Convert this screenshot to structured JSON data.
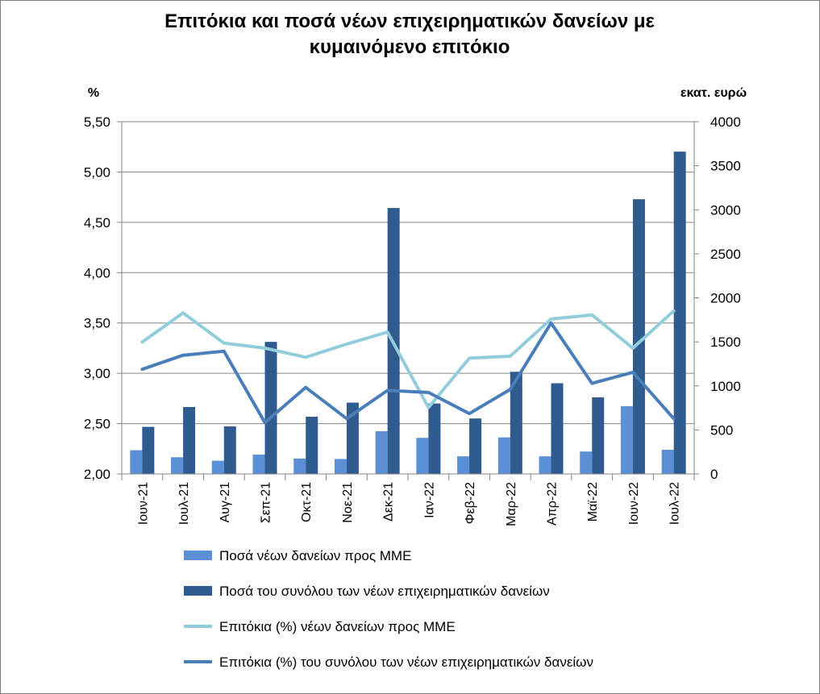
{
  "chart_data": {
    "type": "bar",
    "title": "Επιτόκια και ποσά νέων επιχειρηματικών δανείων με κυμαινόμενο επιτόκιο",
    "title_lines": [
      "Επιτόκια και ποσά νέων επιχειρηματικών  δανείων με",
      "κυμαινόμενο επιτόκιο"
    ],
    "ylabel_left": "%",
    "ylabel_right": "εκατ. ευρώ",
    "ylim_left": [
      2.0,
      5.5
    ],
    "ylim_right": [
      0,
      4000
    ],
    "yticks_left": [
      "2,00",
      "2,50",
      "3,00",
      "3,50",
      "4,00",
      "4,50",
      "5,00",
      "5,50"
    ],
    "yticks_right": [
      "0",
      "500",
      "1000",
      "1500",
      "2000",
      "2500",
      "3000",
      "3500",
      "4000"
    ],
    "grid": true,
    "legend_position": "bottom",
    "categories": [
      "Ιουν-21",
      "Ιουλ-21",
      "Αυγ-21",
      "Σεπ-21",
      "Οκτ-21",
      "Νοε-21",
      "Δεκ-21",
      "Ιαν-22",
      "Φεβ-22",
      "Μαρ-22",
      "Απρ-22",
      "Μαϊ-22",
      "Ιουν-22",
      "Ιουλ-22"
    ],
    "series": [
      {
        "name": "Ποσά νέων δανείων προς ΜΜΕ",
        "type": "bar",
        "axis": "right",
        "color": "#5b8fd6",
        "values": [
          270,
          190,
          150,
          220,
          175,
          170,
          485,
          410,
          200,
          415,
          200,
          255,
          770,
          275
        ]
      },
      {
        "name": "Ποσά του συνόλου των νέων επιχειρηματικών δανείων",
        "type": "bar",
        "axis": "right",
        "color": "#2f5b8f",
        "values": [
          535,
          760,
          540,
          1500,
          650,
          810,
          3020,
          800,
          630,
          1160,
          1030,
          870,
          3120,
          3660
        ]
      },
      {
        "name": "Επιτόκια (%) νέων δανείων προς ΜΜΕ",
        "type": "line",
        "axis": "left",
        "color": "#92cddc",
        "values": [
          3.31,
          3.6,
          3.3,
          3.25,
          3.16,
          3.29,
          3.41,
          2.66,
          3.15,
          3.17,
          3.54,
          3.58,
          3.25,
          3.62
        ]
      },
      {
        "name": "Επιτόκια (%) του συνόλου των νέων επιχειρηματικών δανείων",
        "type": "line",
        "axis": "left",
        "color": "#4a7ebb",
        "values": [
          3.04,
          3.18,
          3.22,
          2.51,
          2.86,
          2.55,
          2.83,
          2.81,
          2.6,
          2.84,
          3.5,
          2.9,
          3.01,
          2.55
        ]
      }
    ]
  }
}
